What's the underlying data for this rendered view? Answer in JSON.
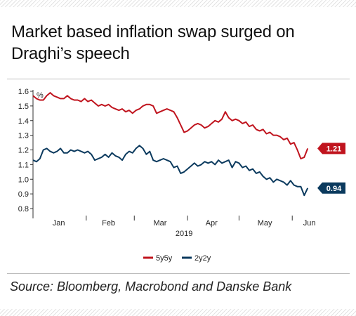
{
  "title": "Market based inflation swap surged on Draghi’s speech",
  "source": "Source: Bloomberg, Macrobond and Danske Bank",
  "chart_data": {
    "type": "line",
    "ylabel": "%",
    "xlabel": "2019",
    "ylim": [
      0.8,
      1.6
    ],
    "yticks": [
      "0.8",
      "0.9",
      "1.0",
      "1.1",
      "1.2",
      "1.3",
      "1.4",
      "1.5",
      "1.6"
    ],
    "xlim": [
      "2019-01-01",
      "2019-06-14"
    ],
    "months": [
      {
        "label": "Jan",
        "date": "2019-01-16"
      },
      {
        "label": "Feb",
        "date": "2019-02-14"
      },
      {
        "label": "Mar",
        "date": "2019-03-16"
      },
      {
        "label": "Apr",
        "date": "2019-04-15"
      },
      {
        "label": "May",
        "date": "2019-05-16"
      },
      {
        "label": "Jun",
        "date": "2019-06-11"
      }
    ],
    "grid": false,
    "legend_position": "bottom",
    "series": [
      {
        "name": "5y5y",
        "color": "#c0141e",
        "end_label": "1.21",
        "points": [
          [
            "2019-01-01",
            1.57
          ],
          [
            "2019-01-03",
            1.55
          ],
          [
            "2019-01-05",
            1.54
          ],
          [
            "2019-01-07",
            1.54
          ],
          [
            "2019-01-09",
            1.57
          ],
          [
            "2019-01-11",
            1.59
          ],
          [
            "2019-01-13",
            1.57
          ],
          [
            "2019-01-15",
            1.56
          ],
          [
            "2019-01-17",
            1.55
          ],
          [
            "2019-01-19",
            1.55
          ],
          [
            "2019-01-21",
            1.57
          ],
          [
            "2019-01-23",
            1.55
          ],
          [
            "2019-01-25",
            1.54
          ],
          [
            "2019-01-27",
            1.54
          ],
          [
            "2019-01-29",
            1.53
          ],
          [
            "2019-01-31",
            1.55
          ],
          [
            "2019-02-02",
            1.53
          ],
          [
            "2019-02-04",
            1.54
          ],
          [
            "2019-02-06",
            1.52
          ],
          [
            "2019-02-08",
            1.5
          ],
          [
            "2019-02-10",
            1.51
          ],
          [
            "2019-02-12",
            1.5
          ],
          [
            "2019-02-14",
            1.51
          ],
          [
            "2019-02-16",
            1.49
          ],
          [
            "2019-02-18",
            1.48
          ],
          [
            "2019-02-20",
            1.47
          ],
          [
            "2019-02-22",
            1.48
          ],
          [
            "2019-02-24",
            1.46
          ],
          [
            "2019-02-26",
            1.47
          ],
          [
            "2019-02-28",
            1.45
          ],
          [
            "2019-03-02",
            1.47
          ],
          [
            "2019-03-04",
            1.48
          ],
          [
            "2019-03-06",
            1.5
          ],
          [
            "2019-03-08",
            1.51
          ],
          [
            "2019-03-10",
            1.51
          ],
          [
            "2019-03-12",
            1.5
          ],
          [
            "2019-03-14",
            1.45
          ],
          [
            "2019-03-16",
            1.46
          ],
          [
            "2019-03-18",
            1.47
          ],
          [
            "2019-03-20",
            1.48
          ],
          [
            "2019-03-22",
            1.47
          ],
          [
            "2019-03-24",
            1.46
          ],
          [
            "2019-03-26",
            1.42
          ],
          [
            "2019-03-28",
            1.37
          ],
          [
            "2019-03-30",
            1.32
          ],
          [
            "2019-04-01",
            1.33
          ],
          [
            "2019-04-03",
            1.35
          ],
          [
            "2019-04-05",
            1.37
          ],
          [
            "2019-04-07",
            1.38
          ],
          [
            "2019-04-09",
            1.37
          ],
          [
            "2019-04-11",
            1.35
          ],
          [
            "2019-04-13",
            1.36
          ],
          [
            "2019-04-15",
            1.38
          ],
          [
            "2019-04-17",
            1.4
          ],
          [
            "2019-04-19",
            1.39
          ],
          [
            "2019-04-21",
            1.41
          ],
          [
            "2019-04-23",
            1.46
          ],
          [
            "2019-04-25",
            1.42
          ],
          [
            "2019-04-27",
            1.4
          ],
          [
            "2019-04-29",
            1.41
          ],
          [
            "2019-05-01",
            1.4
          ],
          [
            "2019-05-03",
            1.38
          ],
          [
            "2019-05-05",
            1.39
          ],
          [
            "2019-05-07",
            1.36
          ],
          [
            "2019-05-09",
            1.37
          ],
          [
            "2019-05-11",
            1.34
          ],
          [
            "2019-05-13",
            1.33
          ],
          [
            "2019-05-15",
            1.34
          ],
          [
            "2019-05-17",
            1.31
          ],
          [
            "2019-05-19",
            1.32
          ],
          [
            "2019-05-21",
            1.3
          ],
          [
            "2019-05-23",
            1.3
          ],
          [
            "2019-05-25",
            1.29
          ],
          [
            "2019-05-27",
            1.27
          ],
          [
            "2019-05-29",
            1.28
          ],
          [
            "2019-05-31",
            1.24
          ],
          [
            "2019-06-02",
            1.25
          ],
          [
            "2019-06-04",
            1.2
          ],
          [
            "2019-06-06",
            1.14
          ],
          [
            "2019-06-08",
            1.15
          ],
          [
            "2019-06-10",
            1.21
          ]
        ]
      },
      {
        "name": "2y2y",
        "color": "#0b3a5e",
        "end_label": "0.94",
        "points": [
          [
            "2019-01-01",
            1.13
          ],
          [
            "2019-01-03",
            1.12
          ],
          [
            "2019-01-05",
            1.14
          ],
          [
            "2019-01-07",
            1.2
          ],
          [
            "2019-01-09",
            1.21
          ],
          [
            "2019-01-11",
            1.19
          ],
          [
            "2019-01-13",
            1.18
          ],
          [
            "2019-01-15",
            1.19
          ],
          [
            "2019-01-17",
            1.21
          ],
          [
            "2019-01-19",
            1.18
          ],
          [
            "2019-01-21",
            1.18
          ],
          [
            "2019-01-23",
            1.2
          ],
          [
            "2019-01-25",
            1.19
          ],
          [
            "2019-01-27",
            1.2
          ],
          [
            "2019-01-29",
            1.19
          ],
          [
            "2019-01-31",
            1.18
          ],
          [
            "2019-02-02",
            1.19
          ],
          [
            "2019-02-04",
            1.17
          ],
          [
            "2019-02-06",
            1.13
          ],
          [
            "2019-02-08",
            1.14
          ],
          [
            "2019-02-10",
            1.15
          ],
          [
            "2019-02-12",
            1.17
          ],
          [
            "2019-02-14",
            1.15
          ],
          [
            "2019-02-16",
            1.18
          ],
          [
            "2019-02-18",
            1.16
          ],
          [
            "2019-02-20",
            1.15
          ],
          [
            "2019-02-22",
            1.13
          ],
          [
            "2019-02-24",
            1.17
          ],
          [
            "2019-02-26",
            1.19
          ],
          [
            "2019-02-28",
            1.18
          ],
          [
            "2019-03-02",
            1.21
          ],
          [
            "2019-03-04",
            1.23
          ],
          [
            "2019-03-06",
            1.21
          ],
          [
            "2019-03-08",
            1.17
          ],
          [
            "2019-03-10",
            1.19
          ],
          [
            "2019-03-12",
            1.13
          ],
          [
            "2019-03-14",
            1.12
          ],
          [
            "2019-03-16",
            1.13
          ],
          [
            "2019-03-18",
            1.14
          ],
          [
            "2019-03-20",
            1.13
          ],
          [
            "2019-03-22",
            1.12
          ],
          [
            "2019-03-24",
            1.08
          ],
          [
            "2019-03-26",
            1.09
          ],
          [
            "2019-03-28",
            1.04
          ],
          [
            "2019-03-30",
            1.05
          ],
          [
            "2019-04-01",
            1.07
          ],
          [
            "2019-04-03",
            1.09
          ],
          [
            "2019-04-05",
            1.11
          ],
          [
            "2019-04-07",
            1.09
          ],
          [
            "2019-04-09",
            1.1
          ],
          [
            "2019-04-11",
            1.12
          ],
          [
            "2019-04-13",
            1.11
          ],
          [
            "2019-04-15",
            1.12
          ],
          [
            "2019-04-17",
            1.1
          ],
          [
            "2019-04-19",
            1.13
          ],
          [
            "2019-04-21",
            1.11
          ],
          [
            "2019-04-23",
            1.12
          ],
          [
            "2019-04-25",
            1.13
          ],
          [
            "2019-04-27",
            1.08
          ],
          [
            "2019-04-29",
            1.12
          ],
          [
            "2019-05-01",
            1.11
          ],
          [
            "2019-05-03",
            1.08
          ],
          [
            "2019-05-05",
            1.09
          ],
          [
            "2019-05-07",
            1.06
          ],
          [
            "2019-05-09",
            1.07
          ],
          [
            "2019-05-11",
            1.04
          ],
          [
            "2019-05-13",
            1.05
          ],
          [
            "2019-05-15",
            1.02
          ],
          [
            "2019-05-17",
            1.0
          ],
          [
            "2019-05-19",
            1.01
          ],
          [
            "2019-05-21",
            0.98
          ],
          [
            "2019-05-23",
            1.0
          ],
          [
            "2019-05-25",
            0.99
          ],
          [
            "2019-05-27",
            0.98
          ],
          [
            "2019-05-29",
            0.96
          ],
          [
            "2019-05-31",
            0.99
          ],
          [
            "2019-06-02",
            0.96
          ],
          [
            "2019-06-04",
            0.95
          ],
          [
            "2019-06-06",
            0.95
          ],
          [
            "2019-06-08",
            0.89
          ],
          [
            "2019-06-10",
            0.94
          ]
        ]
      }
    ]
  }
}
